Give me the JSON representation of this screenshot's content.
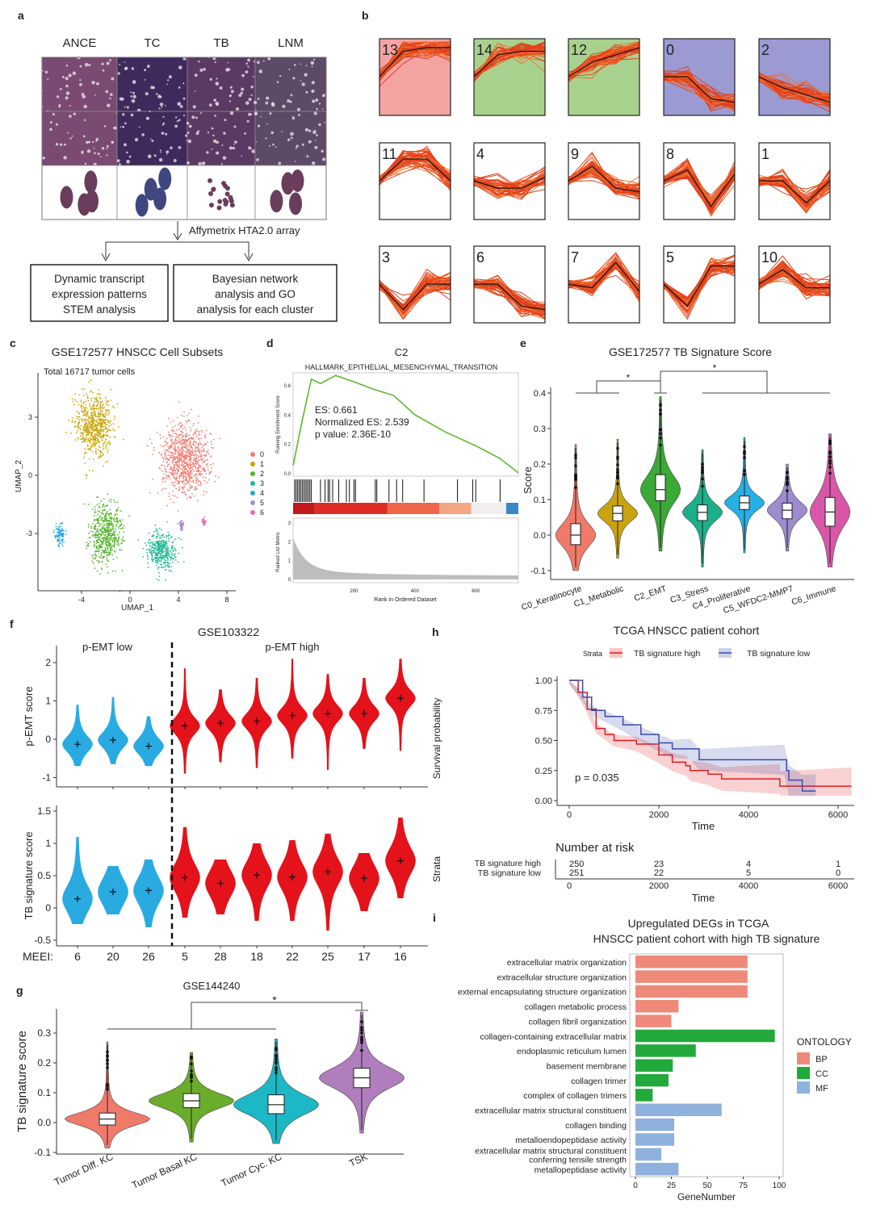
{
  "panel_labels": {
    "a": "a",
    "b": "b",
    "c": "c",
    "d": "d",
    "e": "e",
    "f": "f",
    "g": "g",
    "h": "h",
    "i": "i"
  },
  "panel_a": {
    "columns": [
      "ANCE",
      "TC",
      "TB",
      "LNM"
    ],
    "array_label": "Affymetrix HTA2.0 array",
    "box_left": [
      "Dynamic transcript",
      "expression patterns",
      "STEM analysis"
    ],
    "box_right": [
      "Bayesian network",
      "analysis and GO",
      "analysis for each cluster"
    ]
  },
  "panel_b": {
    "clusters": [
      {
        "id": "13",
        "bg": "#f4a3a3",
        "profile": [
          0.5,
          0.85,
          0.9,
          0.9
        ]
      },
      {
        "id": "14",
        "bg": "#a9d18e",
        "profile": [
          0.5,
          0.8,
          0.85,
          0.85
        ]
      },
      {
        "id": "12",
        "bg": "#a9d18e",
        "profile": [
          0.5,
          0.7,
          0.8,
          0.9
        ]
      },
      {
        "id": "0",
        "bg": "#9c9ad2",
        "profile": [
          0.5,
          0.5,
          0.2,
          0.15
        ]
      },
      {
        "id": "2",
        "bg": "#9c9ad2",
        "profile": [
          0.5,
          0.35,
          0.25,
          0.15
        ]
      },
      {
        "id": "11",
        "bg": "#ffffff",
        "profile": [
          0.5,
          0.8,
          0.8,
          0.5
        ]
      },
      {
        "id": "4",
        "bg": "#ffffff",
        "profile": [
          0.5,
          0.4,
          0.4,
          0.55
        ]
      },
      {
        "id": "9",
        "bg": "#ffffff",
        "profile": [
          0.5,
          0.7,
          0.4,
          0.35
        ]
      },
      {
        "id": "8",
        "bg": "#ffffff",
        "profile": [
          0.5,
          0.65,
          0.15,
          0.6
        ]
      },
      {
        "id": "1",
        "bg": "#ffffff",
        "profile": [
          0.5,
          0.5,
          0.2,
          0.5
        ]
      },
      {
        "id": "3",
        "bg": "#ffffff",
        "profile": [
          0.5,
          0.15,
          0.5,
          0.5
        ]
      },
      {
        "id": "6",
        "bg": "#ffffff",
        "profile": [
          0.5,
          0.5,
          0.2,
          0.15
        ]
      },
      {
        "id": "7",
        "bg": "#ffffff",
        "profile": [
          0.5,
          0.45,
          0.8,
          0.4
        ]
      },
      {
        "id": "5",
        "bg": "#ffffff",
        "profile": [
          0.5,
          0.2,
          0.75,
          0.75
        ]
      },
      {
        "id": "10",
        "bg": "#ffffff",
        "profile": [
          0.5,
          0.7,
          0.45,
          0.45
        ]
      }
    ]
  },
  "chart_data": [
    {
      "id": "c",
      "type": "scatter",
      "title": "GSE172577  HNSCC Cell Subsets",
      "subtitle": "Total 16717 tumor cells",
      "xlabel": "UMAP_1",
      "ylabel": "UMAP_2",
      "xticks": [
        "-4",
        "0",
        "4",
        "8"
      ],
      "yticks": [
        "3",
        "0",
        "-3"
      ],
      "legend": "right",
      "clusters": [
        {
          "name": "0",
          "color": "#f07f74",
          "center": [
            4.5,
            0.8
          ]
        },
        {
          "name": "1",
          "color": "#c9a400",
          "center": [
            -3,
            2.6
          ]
        },
        {
          "name": "2",
          "color": "#54b42b",
          "center": [
            -2,
            -3
          ]
        },
        {
          "name": "3",
          "color": "#1fb996",
          "center": [
            2.6,
            -3.9
          ]
        },
        {
          "name": "4",
          "color": "#22a7e0",
          "center": [
            -5.8,
            -3.1
          ]
        },
        {
          "name": "5",
          "color": "#a58bd6",
          "center": [
            4.3,
            -2.6
          ]
        },
        {
          "name": "6",
          "color": "#e46bb2",
          "center": [
            6.1,
            -2.4
          ]
        }
      ]
    },
    {
      "id": "d",
      "type": "line",
      "title": "C2",
      "subtitle": "HALLMARK_EPITHELIAL_MESENCHYMAL_TRANSITION",
      "ylabel": "Running Enrichment Score",
      "ylabel2": "Ranked List Metric",
      "xlabel": "Rank in Ordered Dataset",
      "yticks": [
        "0.0",
        "0.2",
        "0.4",
        "0.6"
      ],
      "yticks2": [
        "0",
        "1",
        "2",
        "3"
      ],
      "xticks": [
        "200",
        "400",
        "600"
      ],
      "annotation": [
        "ES: 0.661",
        "Normalized ES: 2.539",
        "p value: 2.36E-10"
      ],
      "es_curve": [
        [
          0,
          0.05
        ],
        [
          30,
          0.35
        ],
        [
          60,
          0.64
        ],
        [
          90,
          0.61
        ],
        [
          140,
          0.66
        ],
        [
          200,
          0.63
        ],
        [
          270,
          0.56
        ],
        [
          330,
          0.52
        ],
        [
          400,
          0.4
        ],
        [
          500,
          0.28
        ],
        [
          600,
          0.19
        ],
        [
          680,
          0.09
        ],
        [
          740,
          0
        ]
      ],
      "hits": [
        5,
        10,
        15,
        20,
        25,
        30,
        35,
        40,
        45,
        50,
        55,
        60,
        90,
        105,
        115,
        120,
        130,
        150,
        175,
        185,
        200,
        205,
        270,
        275,
        315,
        340,
        360,
        430,
        540,
        590,
        600,
        680
      ]
    },
    {
      "id": "e",
      "type": "violin",
      "title": "GSE172577  TB Signature  Score",
      "ylabel": "Score",
      "yticks": [
        "0.4",
        "0.3",
        "0.2",
        "0.1",
        "0.0",
        "-0.1"
      ],
      "ylim": [
        -0.1,
        0.4
      ],
      "significance": [
        "*",
        "*"
      ],
      "groups": [
        {
          "name": "C0_Keratinocyte",
          "color": "#f07a6a",
          "median": 0.0,
          "q1": -0.027,
          "q3": 0.032,
          "min": -0.1,
          "max": 0.255
        },
        {
          "name": "C1_Metabolic",
          "color": "#cba30e",
          "median": 0.061,
          "q1": 0.04,
          "q3": 0.082,
          "min": -0.065,
          "max": 0.27
        },
        {
          "name": "C2_EMT",
          "color": "#3aa935",
          "median": 0.128,
          "q1": 0.097,
          "q3": 0.17,
          "min": -0.045,
          "max": 0.39
        },
        {
          "name": "C3_Stress",
          "color": "#1bb08a",
          "median": 0.064,
          "q1": 0.041,
          "q3": 0.085,
          "min": -0.09,
          "max": 0.24
        },
        {
          "name": "C4_Proliferative",
          "color": "#25b0e6",
          "median": 0.091,
          "q1": 0.072,
          "q3": 0.11,
          "min": -0.05,
          "max": 0.275
        },
        {
          "name": "C5_WFDC2-MMP7",
          "color": "#9f8bd0",
          "median": 0.07,
          "q1": 0.046,
          "q3": 0.09,
          "min": -0.045,
          "max": 0.2
        },
        {
          "name": "C6_Immune",
          "color": "#d957a8",
          "median": 0.065,
          "q1": 0.025,
          "q3": 0.106,
          "min": -0.09,
          "max": 0.285
        }
      ]
    },
    {
      "id": "f",
      "type": "violin",
      "title": "GSE103322",
      "group_labels": [
        "p-EMT low",
        "p-EMT high"
      ],
      "xlabel_prefix": "MEEI:",
      "categories": [
        "6",
        "20",
        "26",
        "5",
        "28",
        "18",
        "22",
        "25",
        "17",
        "16"
      ],
      "colors": {
        "low": "#29abe2",
        "high": "#e3121b"
      },
      "top": {
        "ylabel": "p-EMT score",
        "yticks": [
          "2",
          "1",
          "0",
          "-1"
        ],
        "means": [
          -0.13,
          -0.02,
          -0.18,
          0.35,
          0.42,
          0.47,
          0.62,
          0.67,
          0.67,
          1.07
        ],
        "ranges": [
          [
            -0.7,
            0.9
          ],
          [
            -0.65,
            1.1
          ],
          [
            -0.7,
            0.6
          ],
          [
            -0.9,
            1.85
          ],
          [
            -0.6,
            1.3
          ],
          [
            -0.75,
            1.6
          ],
          [
            -0.5,
            2.1
          ],
          [
            -0.8,
            1.7
          ],
          [
            -0.25,
            1.6
          ],
          [
            -0.3,
            2.1
          ]
        ]
      },
      "bottom": {
        "ylabel": "TB signature score",
        "yticks": [
          "1.5",
          "1",
          "0.5",
          "0",
          "-0.5"
        ],
        "means": [
          0.14,
          0.25,
          0.27,
          0.47,
          0.38,
          0.51,
          0.48,
          0.56,
          0.46,
          0.73
        ],
        "ranges": [
          [
            -0.25,
            1.1
          ],
          [
            -0.1,
            0.65
          ],
          [
            -0.3,
            0.75
          ],
          [
            -0.15,
            1.25
          ],
          [
            -0.1,
            0.75
          ],
          [
            -0.2,
            1.0
          ],
          [
            -0.2,
            1.05
          ],
          [
            -0.35,
            1.15
          ],
          [
            -0.05,
            0.85
          ],
          [
            0.15,
            1.4
          ]
        ]
      }
    },
    {
      "id": "g",
      "type": "violin",
      "title": "GSE144240",
      "ylabel": "TB signature score",
      "yticks": [
        "0.3",
        "0.2",
        "0.1",
        "0.0",
        "-0.1"
      ],
      "significance": "*",
      "groups": [
        {
          "name": "Tumor Diff. KC",
          "color": "#f07a6a",
          "median": 0.012,
          "q1": -0.008,
          "q3": 0.032,
          "min": -0.085,
          "max": 0.27
        },
        {
          "name": "Tumor Basal KC",
          "color": "#6aad2a",
          "median": 0.073,
          "q1": 0.05,
          "q3": 0.097,
          "min": -0.065,
          "max": 0.235
        },
        {
          "name": "Tumor Cyc. KC",
          "color": "#1cb8c6",
          "median": 0.06,
          "q1": 0.03,
          "q3": 0.093,
          "min": -0.07,
          "max": 0.28
        },
        {
          "name": "TSK",
          "color": "#b07dbd",
          "median": 0.15,
          "q1": 0.117,
          "q3": 0.182,
          "min": -0.035,
          "max": 0.37
        }
      ]
    },
    {
      "id": "h",
      "type": "line",
      "title": "TCGA HNSCC patient cohort",
      "legend_title": "Strata",
      "legend": "top",
      "ylabel": "Survival probability",
      "xlabel": "Time",
      "yticks": [
        "1.00",
        "0.75",
        "0.50",
        "0.25",
        "0.00"
      ],
      "xticks": [
        "0",
        "2000",
        "4000",
        "6000"
      ],
      "pvalue": "p = 0.035",
      "series": [
        {
          "name": "TB signature high",
          "color": "#e41a1c",
          "points": [
            [
              0,
              1
            ],
            [
              200,
              0.9
            ],
            [
              400,
              0.76
            ],
            [
              600,
              0.6
            ],
            [
              800,
              0.55
            ],
            [
              1000,
              0.5
            ],
            [
              1500,
              0.47
            ],
            [
              2000,
              0.38
            ],
            [
              2300,
              0.32
            ],
            [
              2600,
              0.29
            ],
            [
              2700,
              0.25
            ],
            [
              3100,
              0.22
            ],
            [
              3400,
              0.18
            ],
            [
              4700,
              0.18
            ],
            [
              4700,
              0.12
            ],
            [
              6300,
              0.12
            ]
          ]
        },
        {
          "name": "TB signature low",
          "color": "#3b4ba6",
          "points": [
            [
              0,
              1
            ],
            [
              300,
              0.86
            ],
            [
              500,
              0.75
            ],
            [
              800,
              0.7
            ],
            [
              1200,
              0.63
            ],
            [
              1600,
              0.55
            ],
            [
              2000,
              0.48
            ],
            [
              2300,
              0.43
            ],
            [
              2700,
              0.43
            ],
            [
              2900,
              0.34
            ],
            [
              4800,
              0.34
            ],
            [
              4850,
              0.25
            ],
            [
              4900,
              0.17
            ],
            [
              5200,
              0.08
            ],
            [
              5500,
              0.08
            ]
          ]
        }
      ],
      "risk_table": {
        "title": "Number at risk",
        "ylabel": "Strata",
        "xlabel": "Time",
        "rows": [
          {
            "name": "TB signature high",
            "counts": [
              "250",
              "23",
              "4",
              "1"
            ]
          },
          {
            "name": "TB signature low",
            "counts": [
              "251",
              "22",
              "5",
              "0"
            ]
          }
        ]
      }
    },
    {
      "id": "i",
      "type": "bar",
      "title": [
        "Upregulated  DEGs in TCGA",
        "HNSCC patient cohort with high TB signature"
      ],
      "xlabel": "GeneNumber",
      "xticks": [
        "0",
        "25",
        "50",
        "75",
        "100"
      ],
      "xlim": [
        0,
        100
      ],
      "legend_title": "ONTOLOGY",
      "legend": "right",
      "ontologies": [
        {
          "name": "BP",
          "color": "#ef8a7a"
        },
        {
          "name": "CC",
          "color": "#22a93b"
        },
        {
          "name": "MF",
          "color": "#8eb1dd"
        }
      ],
      "terms": [
        {
          "label": [
            "extracellular matrix organization"
          ],
          "value": 78,
          "ont": 0
        },
        {
          "label": [
            "extracellular structure organization"
          ],
          "value": 78,
          "ont": 0
        },
        {
          "label": [
            "external encapsulating structure organization"
          ],
          "value": 78,
          "ont": 0
        },
        {
          "label": [
            "collagen metabolic process"
          ],
          "value": 30,
          "ont": 0
        },
        {
          "label": [
            "collagen fibril organization"
          ],
          "value": 25,
          "ont": 0
        },
        {
          "label": [
            "collagen-containing extracellular matrix"
          ],
          "value": 97,
          "ont": 1
        },
        {
          "label": [
            "endoplasmic reticulum lumen"
          ],
          "value": 42,
          "ont": 1
        },
        {
          "label": [
            "basement membrane"
          ],
          "value": 26,
          "ont": 1
        },
        {
          "label": [
            "collagen trimer"
          ],
          "value": 23,
          "ont": 1
        },
        {
          "label": [
            "complex of collagen trimers"
          ],
          "value": 12,
          "ont": 1
        },
        {
          "label": [
            "extracellular matrix structural constituent"
          ],
          "value": 60,
          "ont": 2
        },
        {
          "label": [
            "collagen binding"
          ],
          "value": 27,
          "ont": 2
        },
        {
          "label": [
            "metalloendopeptidase activity"
          ],
          "value": 27,
          "ont": 2
        },
        {
          "label": [
            "extracellular matrix structural constituent",
            "conferring tensile strength"
          ],
          "value": 18,
          "ont": 2
        },
        {
          "label": [
            "metallopeptidase activity"
          ],
          "value": 30,
          "ont": 2
        }
      ]
    }
  ]
}
